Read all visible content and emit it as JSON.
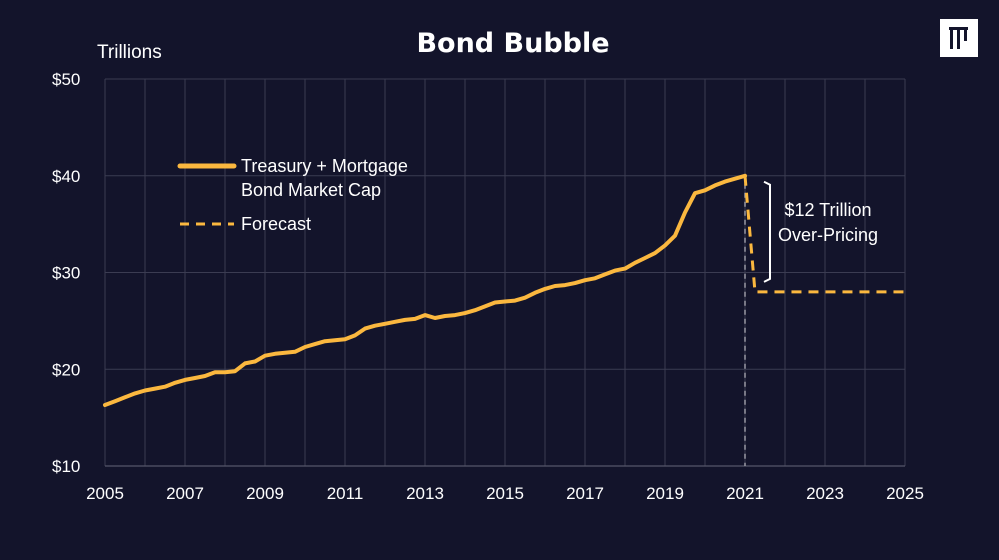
{
  "colors": {
    "background": "#13142b",
    "series": "#fbb83f",
    "grid": "#3b3c52",
    "text": "#ffffff",
    "marker_line": "#9a9aa5"
  },
  "logo": {
    "icon": "bars-logo-icon"
  },
  "chart_data": {
    "type": "line",
    "title": "Bond Bubble",
    "ylabel": "Trillions",
    "xlabel": "",
    "xlim": [
      2005,
      2025
    ],
    "ylim": [
      10,
      50
    ],
    "x_ticks": [
      "2005",
      "2007",
      "2009",
      "2011",
      "2013",
      "2015",
      "2017",
      "2019",
      "2021",
      "2023",
      "2025"
    ],
    "y_ticks": [
      "$10",
      "$20",
      "$30",
      "$40",
      "$50"
    ],
    "grid": true,
    "legend_position": "top-left",
    "series": [
      {
        "name": "Treasury + Mortgage Bond Market Cap",
        "name_lines": [
          "Treasury + Mortgage",
          "Bond Market Cap"
        ],
        "style": "solid",
        "points": [
          [
            2005.0,
            16.3
          ],
          [
            2005.25,
            16.7
          ],
          [
            2005.5,
            17.1
          ],
          [
            2005.75,
            17.5
          ],
          [
            2006.0,
            17.8
          ],
          [
            2006.25,
            18.0
          ],
          [
            2006.5,
            18.2
          ],
          [
            2006.75,
            18.6
          ],
          [
            2007.0,
            18.9
          ],
          [
            2007.25,
            19.1
          ],
          [
            2007.5,
            19.3
          ],
          [
            2007.75,
            19.7
          ],
          [
            2008.0,
            19.7
          ],
          [
            2008.25,
            19.8
          ],
          [
            2008.5,
            20.6
          ],
          [
            2008.75,
            20.8
          ],
          [
            2009.0,
            21.4
          ],
          [
            2009.25,
            21.6
          ],
          [
            2009.5,
            21.7
          ],
          [
            2009.75,
            21.8
          ],
          [
            2010.0,
            22.3
          ],
          [
            2010.25,
            22.6
          ],
          [
            2010.5,
            22.9
          ],
          [
            2010.75,
            23.0
          ],
          [
            2011.0,
            23.1
          ],
          [
            2011.25,
            23.5
          ],
          [
            2011.5,
            24.2
          ],
          [
            2011.75,
            24.5
          ],
          [
            2012.0,
            24.7
          ],
          [
            2012.25,
            24.9
          ],
          [
            2012.5,
            25.1
          ],
          [
            2012.75,
            25.2
          ],
          [
            2013.0,
            25.6
          ],
          [
            2013.25,
            25.3
          ],
          [
            2013.5,
            25.5
          ],
          [
            2013.75,
            25.6
          ],
          [
            2014.0,
            25.8
          ],
          [
            2014.25,
            26.1
          ],
          [
            2014.5,
            26.5
          ],
          [
            2014.75,
            26.9
          ],
          [
            2015.0,
            27.0
          ],
          [
            2015.25,
            27.1
          ],
          [
            2015.5,
            27.4
          ],
          [
            2015.75,
            27.9
          ],
          [
            2016.0,
            28.3
          ],
          [
            2016.25,
            28.6
          ],
          [
            2016.5,
            28.7
          ],
          [
            2016.75,
            28.9
          ],
          [
            2017.0,
            29.2
          ],
          [
            2017.25,
            29.4
          ],
          [
            2017.5,
            29.8
          ],
          [
            2017.75,
            30.2
          ],
          [
            2018.0,
            30.4
          ],
          [
            2018.25,
            31.0
          ],
          [
            2018.5,
            31.5
          ],
          [
            2018.75,
            32.0
          ],
          [
            2019.0,
            32.8
          ],
          [
            2019.25,
            33.8
          ],
          [
            2019.5,
            36.2
          ],
          [
            2019.75,
            38.2
          ],
          [
            2020.0,
            38.5
          ],
          [
            2020.25,
            39.0
          ],
          [
            2020.5,
            39.4
          ],
          [
            2020.75,
            39.7
          ],
          [
            2021.0,
            40.0
          ]
        ]
      },
      {
        "name": "Forecast",
        "name_lines": [
          "Forecast"
        ],
        "style": "dashed",
        "points": [
          [
            2021.0,
            40.0
          ],
          [
            2021.25,
            28.0
          ],
          [
            2025.0,
            28.0
          ]
        ]
      }
    ],
    "annotations": [
      {
        "text_lines": [
          "$12 Trillion",
          "Over-Pricing"
        ],
        "y_from": 40,
        "y_to": 28,
        "x": 2021.5
      }
    ],
    "vertical_marker": {
      "x": 2021.0,
      "style": "dashed"
    }
  }
}
